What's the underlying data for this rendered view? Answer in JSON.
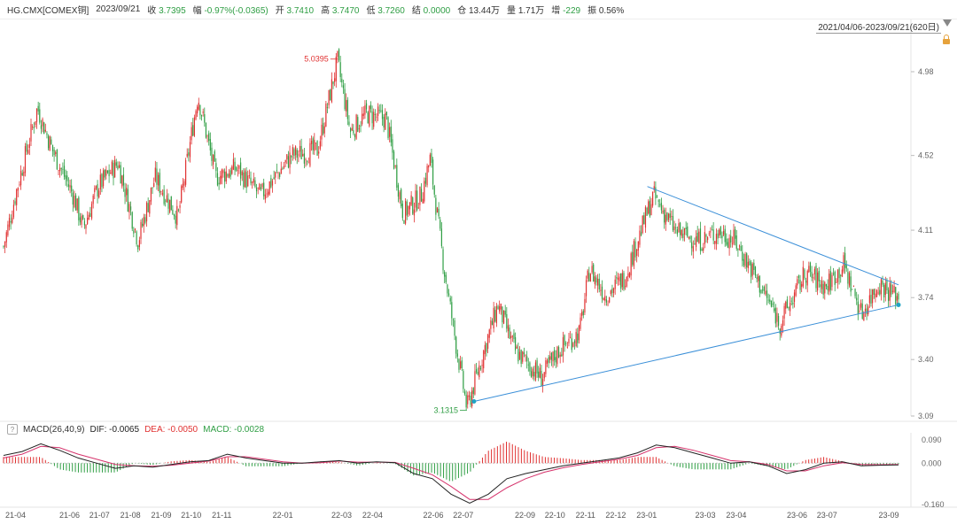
{
  "header": {
    "symbol": "HG.CMX[COMEX铜]",
    "date": "2023/09/21",
    "close_label": "收",
    "close": "3.7395",
    "change_label": "幅",
    "change": "-0.97%(-0.0365)",
    "open_label": "开",
    "open": "3.7410",
    "high_label": "高",
    "high": "3.7470",
    "low_label": "低",
    "low": "3.7260",
    "settle_label": "结",
    "settle": "0.0000",
    "oi_label": "仓",
    "oi": "13.44万",
    "vol_label": "量",
    "vol": "1.71万",
    "inc_label": "增",
    "inc": "-229",
    "amp_label": "振",
    "amp": "0.56%"
  },
  "range_selector": "2021/04/06-2023/09/21(620日)",
  "macd_header": {
    "help": "?",
    "name": "MACD(26,40,9)",
    "dif": "DIF: -0.0065",
    "dea": "DEA: -0.0050",
    "macd": "MACD: -0.0028"
  },
  "colors": {
    "up": "#e03131",
    "down": "#2f9e44",
    "trend": "#3a8fd8",
    "dif": "#222222",
    "dea": "#d6336c"
  },
  "chart_data": [
    {
      "type": "candlestick",
      "title": "",
      "ylim": [
        3.09,
        5.15
      ],
      "y_ticks": [
        "4.98",
        "4.52",
        "4.11",
        "3.74",
        "3.40",
        "3.09"
      ],
      "x_ticks": [
        "21-04",
        "21-06",
        "21-07",
        "21-08",
        "21-09",
        "21-10",
        "21-11",
        "22-01",
        "22-03",
        "22-04",
        "22-06",
        "22-07",
        "22-09",
        "22-10",
        "22-11",
        "22-12",
        "23-01",
        "23-03",
        "23-04",
        "23-06",
        "23-07",
        "23-09"
      ],
      "annotations": [
        {
          "text": "5.0395",
          "date": "2022-03",
          "value": 5.0395,
          "kind": "high"
        },
        {
          "text": "3.1315",
          "date": "2022-07",
          "value": 3.1315,
          "kind": "low"
        }
      ],
      "price_path": [
        {
          "date": "2021-04-06",
          "value": 4.02
        },
        {
          "date": "2021-04-20",
          "value": 4.35
        },
        {
          "date": "2021-05-10",
          "value": 4.78
        },
        {
          "date": "2021-05-25",
          "value": 4.55
        },
        {
          "date": "2021-06-15",
          "value": 4.3
        },
        {
          "date": "2021-06-25",
          "value": 4.12
        },
        {
          "date": "2021-07-10",
          "value": 4.35
        },
        {
          "date": "2021-07-30",
          "value": 4.48
        },
        {
          "date": "2021-08-19",
          "value": 4.05
        },
        {
          "date": "2021-09-05",
          "value": 4.4
        },
        {
          "date": "2021-09-28",
          "value": 4.18
        },
        {
          "date": "2021-10-18",
          "value": 4.85
        },
        {
          "date": "2021-11-05",
          "value": 4.4
        },
        {
          "date": "2021-11-25",
          "value": 4.45
        },
        {
          "date": "2021-12-20",
          "value": 4.3
        },
        {
          "date": "2022-01-20",
          "value": 4.52
        },
        {
          "date": "2022-02-15",
          "value": 4.55
        },
        {
          "date": "2022-03-07",
          "value": 5.0395
        },
        {
          "date": "2022-03-20",
          "value": 4.65
        },
        {
          "date": "2022-04-05",
          "value": 4.75
        },
        {
          "date": "2022-04-25",
          "value": 4.72
        },
        {
          "date": "2022-05-12",
          "value": 4.2
        },
        {
          "date": "2022-05-30",
          "value": 4.3
        },
        {
          "date": "2022-06-08",
          "value": 4.5
        },
        {
          "date": "2022-06-22",
          "value": 3.9
        },
        {
          "date": "2022-07-05",
          "value": 3.45
        },
        {
          "date": "2022-07-15",
          "value": 3.1315
        },
        {
          "date": "2022-08-01",
          "value": 3.45
        },
        {
          "date": "2022-08-15",
          "value": 3.7
        },
        {
          "date": "2022-09-01",
          "value": 3.45
        },
        {
          "date": "2022-09-28",
          "value": 3.3
        },
        {
          "date": "2022-10-15",
          "value": 3.45
        },
        {
          "date": "2022-11-05",
          "value": 3.55
        },
        {
          "date": "2022-11-15",
          "value": 3.9
        },
        {
          "date": "2022-12-01",
          "value": 3.75
        },
        {
          "date": "2022-12-20",
          "value": 3.85
        },
        {
          "date": "2023-01-18",
          "value": 4.3
        },
        {
          "date": "2023-02-10",
          "value": 4.1
        },
        {
          "date": "2023-03-05",
          "value": 4.05
        },
        {
          "date": "2023-03-25",
          "value": 4.1
        },
        {
          "date": "2023-04-10",
          "value": 4.05
        },
        {
          "date": "2023-05-01",
          "value": 3.85
        },
        {
          "date": "2023-05-25",
          "value": 3.6
        },
        {
          "date": "2023-06-20",
          "value": 3.88
        },
        {
          "date": "2023-07-10",
          "value": 3.8
        },
        {
          "date": "2023-07-28",
          "value": 3.92
        },
        {
          "date": "2023-08-15",
          "value": 3.65
        },
        {
          "date": "2023-09-01",
          "value": 3.82
        },
        {
          "date": "2023-09-21",
          "value": 3.7395
        }
      ],
      "trendlines": [
        {
          "kind": "resistance",
          "from": {
            "date": "2023-01-12",
            "value": 4.35
          },
          "to": {
            "date": "2023-09-21",
            "value": 3.81
          }
        },
        {
          "kind": "support",
          "from": {
            "date": "2022-07-22",
            "value": 3.17
          },
          "to": {
            "date": "2023-09-21",
            "value": 3.7
          }
        }
      ]
    },
    {
      "type": "macd",
      "ylim": [
        -0.16,
        0.09
      ],
      "y_ticks": [
        "0.090",
        "0.000",
        "-0.160"
      ],
      "series": [
        {
          "name": "DIF",
          "values": [
            0.03,
            0.045,
            0.075,
            0.05,
            0.02,
            0.0,
            -0.02,
            -0.01,
            -0.015,
            -0.005,
            0.005,
            0.01,
            0.035,
            0.02,
            0.01,
            0.0,
            0.0,
            0.005,
            0.01,
            0.0,
            0.005,
            0.002,
            -0.04,
            -0.06,
            -0.12,
            -0.155,
            -0.12,
            -0.06,
            -0.04,
            -0.025,
            -0.01,
            0.0,
            0.01,
            0.02,
            0.04,
            0.07,
            0.06,
            0.04,
            0.02,
            0.0,
            0.005,
            -0.01,
            -0.04,
            -0.025,
            0.0,
            0.005,
            -0.01,
            -0.008,
            -0.0065
          ]
        },
        {
          "name": "DEA",
          "values": [
            0.02,
            0.035,
            0.065,
            0.06,
            0.035,
            0.015,
            -0.005,
            -0.01,
            -0.012,
            -0.008,
            0.0,
            0.008,
            0.025,
            0.025,
            0.015,
            0.005,
            0.0,
            0.002,
            0.008,
            0.004,
            0.004,
            0.003,
            -0.02,
            -0.045,
            -0.09,
            -0.14,
            -0.14,
            -0.095,
            -0.06,
            -0.035,
            -0.018,
            -0.005,
            0.005,
            0.015,
            0.03,
            0.06,
            0.065,
            0.05,
            0.03,
            0.01,
            0.005,
            -0.005,
            -0.03,
            -0.03,
            -0.01,
            0.002,
            -0.005,
            -0.006,
            -0.005
          ]
        }
      ]
    }
  ]
}
